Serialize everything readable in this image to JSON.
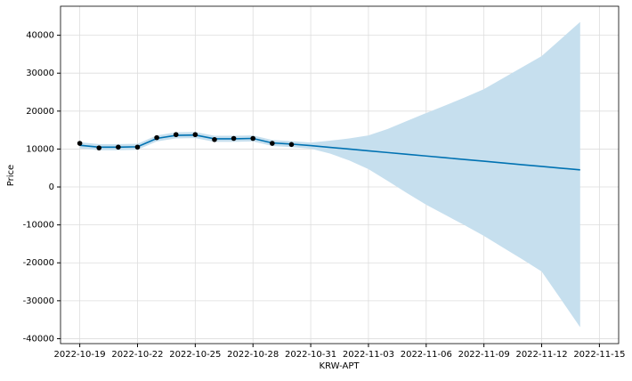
{
  "chart_data": {
    "type": "forecast",
    "x_label": "KRW-APT",
    "y_label": "Price",
    "grid": true,
    "x": [
      "2022-10-19",
      "2022-10-20",
      "2022-10-21",
      "2022-10-22",
      "2022-10-23",
      "2022-10-24",
      "2022-10-25",
      "2022-10-26",
      "2022-10-27",
      "2022-10-28",
      "2022-10-29",
      "2022-10-30",
      "2022-10-31",
      "2022-11-01",
      "2022-11-02",
      "2022-11-03",
      "2022-11-04",
      "2022-11-05",
      "2022-11-06",
      "2022-11-07",
      "2022-11-08",
      "2022-11-09",
      "2022-11-10",
      "2022-11-11",
      "2022-11-12",
      "2022-11-13",
      "2022-11-14"
    ],
    "series": [
      {
        "type": "area",
        "color": "#c6dfee",
        "lower": [
          10200,
          9700,
          9700,
          9800,
          12000,
          12800,
          12900,
          11900,
          11900,
          12000,
          10800,
          10500,
          10100,
          8800,
          7000,
          4700,
          1600,
          -1600,
          -4700,
          -7400,
          -10100,
          -12900,
          -16000,
          -19100,
          -22300,
          -29600,
          -37000
        ],
        "upper": [
          11800,
          11300,
          11300,
          11400,
          13600,
          14400,
          14500,
          13500,
          13500,
          13600,
          12400,
          12100,
          11700,
          12200,
          12800,
          13600,
          15300,
          17400,
          19500,
          21500,
          23600,
          25800,
          28700,
          31600,
          34500,
          39000,
          43500
        ]
      },
      {
        "type": "line",
        "color": "#0072b2",
        "values": [
          11000,
          10500,
          10500,
          10600,
          12800,
          13600,
          13700,
          12700,
          12700,
          12800,
          11600,
          11300,
          10900,
          10440,
          9990,
          9530,
          9070,
          8610,
          8160,
          7700,
          7240,
          6790,
          6330,
          5870,
          5410,
          4960,
          4500
        ]
      },
      {
        "type": "scatter",
        "color": "#000000",
        "values": [
          11500,
          10300,
          10500,
          10500,
          13000,
          13800,
          13800,
          12500,
          12800,
          12800,
          11500,
          11200,
          null,
          null,
          null,
          null,
          null,
          null,
          null,
          null,
          null,
          null,
          null,
          null,
          null,
          null,
          null
        ]
      }
    ],
    "xlim": [
      "2022-10-18",
      "2022-11-16"
    ],
    "xticks": [
      "2022-10-19",
      "2022-10-22",
      "2022-10-25",
      "2022-10-28",
      "2022-10-31",
      "2022-11-03",
      "2022-11-06",
      "2022-11-09",
      "2022-11-12",
      "2022-11-15"
    ],
    "ylim": [
      -41300,
      47650
    ],
    "yticks": [
      -40000,
      -30000,
      -20000,
      -10000,
      0,
      10000,
      20000,
      30000,
      40000
    ]
  }
}
